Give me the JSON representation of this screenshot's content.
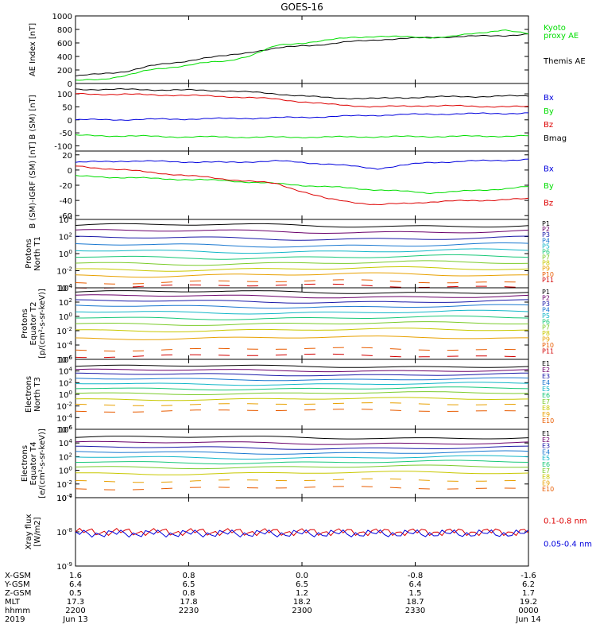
{
  "title": "GOES-16",
  "colors": {
    "axis": "#000000",
    "black": "#000000",
    "green": "#00dd00",
    "blue": "#0000dd",
    "red": "#dd0000",
    "rainbow": [
      "#000000",
      "#6a006a",
      "#1a1aa8",
      "#1a78d0",
      "#12b6c8",
      "#18c878",
      "#7acb2a",
      "#c8c800",
      "#e8a000",
      "#e85c00",
      "#d20000"
    ]
  },
  "chart_data": [
    {
      "id": "ae",
      "type": "line",
      "ylabel": "AE Index [nT]",
      "ylim": [
        0,
        1000
      ],
      "yticks": [
        "0",
        "200",
        "400",
        "600",
        "800",
        "1000"
      ],
      "x": [
        0,
        10,
        20,
        30,
        40,
        50,
        60,
        70,
        80,
        90,
        100,
        110,
        120,
        130,
        140,
        150,
        160,
        170,
        180
      ],
      "series": [
        {
          "name": "Themis AE",
          "color": "black",
          "values": [
            110,
            140,
            180,
            260,
            310,
            370,
            410,
            470,
            520,
            560,
            580,
            620,
            650,
            660,
            680,
            690,
            700,
            710,
            730
          ]
        },
        {
          "name": "Kyoto proxy AE",
          "color": "green",
          "values": [
            40,
            60,
            120,
            200,
            250,
            300,
            330,
            420,
            560,
            600,
            640,
            680,
            700,
            690,
            680,
            700,
            740,
            800,
            730
          ]
        }
      ],
      "legend": [
        {
          "text": "Kyoto",
          "color": "green"
        },
        {
          "text": "proxy AE",
          "color": "green"
        },
        {
          "text": "Themis AE",
          "color": "black"
        }
      ]
    },
    {
      "id": "bsm",
      "type": "line",
      "ylabel": "B (SM) [nT]",
      "ylim": [
        -120,
        140
      ],
      "yticks": [
        "-100",
        "-50",
        "0",
        "50",
        "100"
      ],
      "x": [
        0,
        20,
        40,
        60,
        80,
        100,
        120,
        140,
        160,
        180
      ],
      "series": [
        {
          "name": "Bx",
          "color": "blue",
          "values": [
            0,
            1,
            3,
            5,
            8,
            12,
            18,
            22,
            24,
            26
          ]
        },
        {
          "name": "By",
          "color": "green",
          "values": [
            -60,
            -62,
            -65,
            -66,
            -67,
            -66,
            -65,
            -64,
            -63,
            -62
          ]
        },
        {
          "name": "Bz",
          "color": "red",
          "values": [
            100,
            98,
            95,
            90,
            80,
            60,
            50,
            55,
            52,
            50
          ]
        },
        {
          "name": "Bmag",
          "color": "black",
          "values": [
            118,
            117,
            115,
            112,
            100,
            85,
            82,
            88,
            90,
            92
          ]
        }
      ],
      "legend": [
        {
          "text": "Bx",
          "color": "blue"
        },
        {
          "text": "By",
          "color": "green"
        },
        {
          "text": "Bz",
          "color": "red"
        },
        {
          "text": "Bmag",
          "color": "black"
        }
      ]
    },
    {
      "id": "igrf",
      "type": "line",
      "ylabel": "B (SM)-IGRF (SM) [nT]",
      "ylim": [
        -65,
        25
      ],
      "yticks": [
        "-60",
        "-40",
        "-20",
        "0",
        "20"
      ],
      "x": [
        0,
        20,
        40,
        60,
        80,
        100,
        120,
        140,
        160,
        180
      ],
      "series": [
        {
          "name": "Bx",
          "color": "blue",
          "values": [
            10,
            12,
            11,
            10,
            12,
            8,
            2,
            10,
            12,
            14
          ]
        },
        {
          "name": "By",
          "color": "green",
          "values": [
            -8,
            -10,
            -12,
            -14,
            -18,
            -22,
            -26,
            -30,
            -27,
            -22
          ]
        },
        {
          "name": "Bz",
          "color": "red",
          "values": [
            5,
            0,
            -6,
            -12,
            -18,
            -38,
            -46,
            -42,
            -40,
            -38
          ]
        }
      ],
      "legend": [
        {
          "text": "Bx",
          "color": "blue"
        },
        {
          "text": "By",
          "color": "green"
        },
        {
          "text": "Bz",
          "color": "red"
        }
      ]
    },
    {
      "id": "pn",
      "type": "line",
      "log": true,
      "ylabel": [
        "Protons",
        "North T1"
      ],
      "ylim_exp": [
        -4,
        4
      ],
      "yticks": [
        {
          "exp": -4
        },
        {
          "exp": -2
        },
        {
          "exp": 0
        },
        {
          "exp": 2
        },
        {
          "exp": 4
        }
      ],
      "names": [
        "P1",
        "P2",
        "P3",
        "P4",
        "P5",
        "P6",
        "P7",
        "P8",
        "P9",
        "P10",
        "P11"
      ],
      "levels": [
        3.3,
        2.6,
        1.8,
        1.0,
        0.3,
        -0.4,
        -1.1,
        -1.8,
        -2.5,
        -3.3,
        -3.8
      ]
    },
    {
      "id": "pe",
      "type": "line",
      "log": true,
      "ylabel": [
        "Protons",
        "Equator T2",
        "[p/(cm²-s-sr-keV)]"
      ],
      "ylim_exp": [
        -6,
        4
      ],
      "yticks": [
        {
          "exp": -6
        },
        {
          "exp": -4
        },
        {
          "exp": -2
        },
        {
          "exp": 0
        },
        {
          "exp": 2
        },
        {
          "exp": 4
        }
      ],
      "names": [
        "P1",
        "P2",
        "P3",
        "P4",
        "P5",
        "P6",
        "P7",
        "P8",
        "P9",
        "P10",
        "P11"
      ],
      "levels": [
        3.4,
        2.8,
        2.1,
        1.4,
        0.6,
        -0.2,
        -1.0,
        -1.9,
        -3.0,
        -4.6,
        -5.5
      ]
    },
    {
      "id": "en",
      "type": "line",
      "log": true,
      "ylabel": [
        "Electrons",
        "North T3"
      ],
      "ylim_exp": [
        -6,
        6
      ],
      "yticks": [
        {
          "exp": -6
        },
        {
          "exp": -4
        },
        {
          "exp": -2
        },
        {
          "exp": 0
        },
        {
          "exp": 2
        },
        {
          "exp": 4
        },
        {
          "exp": 6
        }
      ],
      "names": [
        "E1",
        "E2",
        "E3",
        "E4",
        "E5",
        "E6",
        "E7",
        "E8",
        "E9",
        "E10"
      ],
      "levels": [
        4.8,
        4.1,
        3.4,
        2.6,
        1.8,
        1.0,
        0.2,
        -0.8,
        -1.7,
        -2.8
      ]
    },
    {
      "id": "ee",
      "type": "line",
      "log": true,
      "ylabel": [
        "Electrons",
        "Equator T4",
        "[e/(cm²-s-sr-keV)]"
      ],
      "ylim_exp": [
        -4,
        6
      ],
      "yticks": [
        {
          "exp": -4
        },
        {
          "exp": -2
        },
        {
          "exp": 0
        },
        {
          "exp": 2
        },
        {
          "exp": 4
        },
        {
          "exp": 6
        }
      ],
      "names": [
        "E1",
        "E2",
        "E3",
        "E4",
        "E5",
        "E6",
        "E7",
        "E8",
        "E9",
        "E10"
      ],
      "levels": [
        4.8,
        4.0,
        3.3,
        2.6,
        1.9,
        1.2,
        0.5,
        -0.4,
        -1.5,
        -2.6
      ]
    },
    {
      "id": "xray",
      "type": "line",
      "log": true,
      "ylabel": [
        "Xray flux",
        "[W/m2]"
      ],
      "ylim_exp": [
        -9,
        -7
      ],
      "yticks": [
        {
          "exp": -9
        },
        {
          "exp": -8
        },
        {
          "exp": -7
        }
      ],
      "series": [
        {
          "name": "0.1-0.8 nm",
          "color": "red",
          "level": -8
        },
        {
          "name": "0.05-0.4 nm",
          "color": "blue",
          "level": -8.05
        }
      ],
      "legend": [
        {
          "text": "0.1-0.8 nm",
          "color": "red"
        },
        {
          "text": "0.05-0.4 nm",
          "color": "blue"
        }
      ]
    }
  ],
  "xaxis": {
    "row_labels": [
      "X-GSM",
      "Y-GSM",
      "Z-GSM",
      "MLT",
      "hhmm",
      "2019"
    ],
    "columns": [
      [
        "1.6",
        "6.4",
        "0.5",
        "17.3",
        "2200",
        "Jun 13"
      ],
      [
        "0.8",
        "6.5",
        "0.8",
        "17.8",
        "2230",
        ""
      ],
      [
        "0.0",
        "6.5",
        "1.2",
        "18.2",
        "2300",
        ""
      ],
      [
        "-0.8",
        "6.4",
        "1.5",
        "18.7",
        "2330",
        ""
      ],
      [
        "-1.6",
        "6.2",
        "1.7",
        "19.2",
        "0000",
        "Jun 14"
      ]
    ]
  }
}
